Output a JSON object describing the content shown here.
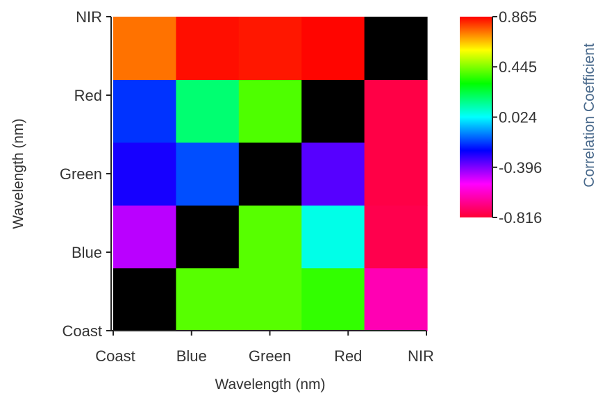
{
  "chart_data": {
    "type": "heatmap",
    "xlabel": "Wavelength (nm)",
    "ylabel": "Wavelength (nm)",
    "x_categories": [
      "Coast",
      "Blue",
      "Green",
      "Red",
      "NIR"
    ],
    "y_categories": [
      "Coast",
      "Blue",
      "Green",
      "Red",
      "NIR"
    ],
    "tick_labels": {
      "x": [
        "Coast",
        "Blue",
        "Green",
        "Red",
        "NIR"
      ],
      "y": [
        "Coast",
        "Blue",
        "Green",
        "Red",
        "NIR"
      ]
    },
    "values": [
      [
        null,
        0.4,
        0.4,
        0.36,
        -0.64
      ],
      [
        -0.46,
        null,
        0.4,
        0.05,
        -0.78
      ],
      [
        -0.28,
        -0.17,
        null,
        -0.35,
        -0.79
      ],
      [
        -0.2,
        0.18,
        0.39,
        null,
        -0.79
      ],
      [
        0.74,
        0.85,
        0.84,
        0.86,
        null
      ]
    ],
    "diagonal_color": "#000000",
    "colorbar": {
      "title": "Correlation Coefficient",
      "min": -0.816,
      "max": 0.865,
      "ticks": [
        0.865,
        0.445,
        0.024,
        -0.396,
        -0.816
      ],
      "tick_labels": [
        "0.865",
        "0.445",
        "0.024",
        "-0.396",
        "-0.816"
      ],
      "stops": [
        "#ff0033",
        "#ff00ff",
        "#0000ff",
        "#00ffff",
        "#00ff00",
        "#ffff00",
        "#ff0000"
      ]
    },
    "grid": false,
    "legend": "right"
  }
}
